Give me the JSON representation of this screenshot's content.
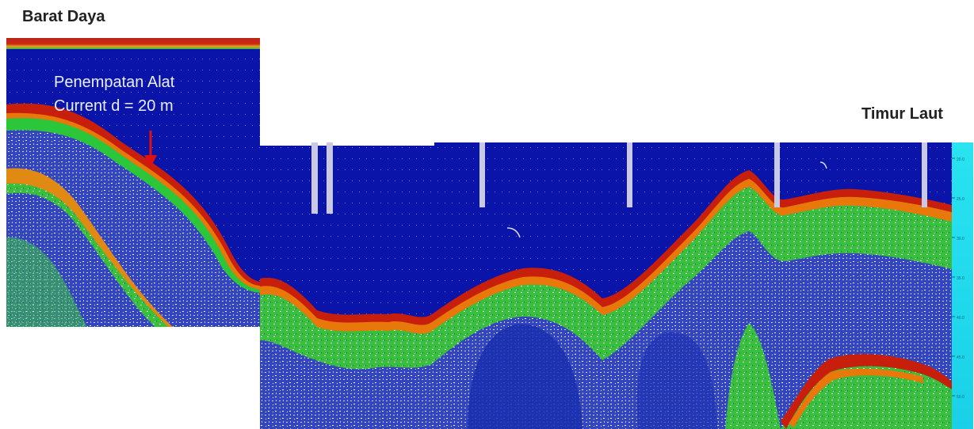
{
  "labels": {
    "southwest": "Barat Daya",
    "northeast": "Timur Laut"
  },
  "annotation": {
    "line1": "Penempatan Alat",
    "line2": "Current d = 20 m"
  },
  "colors": {
    "water": "#0b14a8",
    "bottom_red": "#c81e0c",
    "bottom_orange": "#e8780a",
    "bottom_green": "#2bc42a",
    "sediment_blue": "#3a4fc4",
    "sediment_speck": "#d8dcf0",
    "surface_band": "#c0281a",
    "scale_bar": "#2ee6f2",
    "arrow": "#e01010"
  },
  "depth_scale_ticks": [
    "20.0",
    "25.0",
    "30.0",
    "35.0",
    "40.0",
    "45.0",
    "50.0"
  ]
}
